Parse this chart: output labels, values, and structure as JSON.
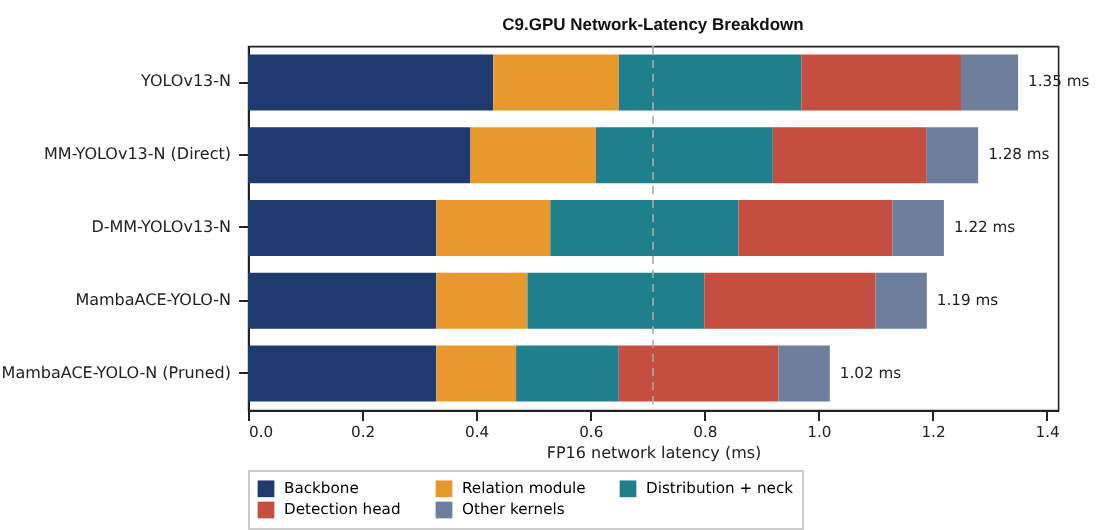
{
  "chart_data": {
    "type": "bar",
    "orientation": "horizontal",
    "stacked": true,
    "title": "C9.GPU Network-Latency Breakdown",
    "xlabel": "FP16 network latency (ms)",
    "categories": [
      "YOLOv13-N",
      "MM-YOLOv13-N (Direct)",
      "D-MM-YOLOv13-N",
      "MambaACE-YOLO-N",
      "MambaACE-YOLO-N (Pruned)"
    ],
    "series": [
      {
        "name": "Backbone",
        "color": "#1f3a6e",
        "values": [
          0.43,
          0.39,
          0.33,
          0.33,
          0.33
        ]
      },
      {
        "name": "Relation module",
        "color": "#e8992e",
        "values": [
          0.22,
          0.22,
          0.2,
          0.16,
          0.14
        ]
      },
      {
        "name": "Distribution + neck",
        "color": "#1f7f8a",
        "values": [
          0.32,
          0.31,
          0.33,
          0.31,
          0.18
        ]
      },
      {
        "name": "Detection head",
        "color": "#c44e3f",
        "values": [
          0.28,
          0.27,
          0.27,
          0.3,
          0.28
        ]
      },
      {
        "name": "Other kernels",
        "color": "#6e7f9e",
        "values": [
          0.1,
          0.09,
          0.09,
          0.09,
          0.09
        ]
      }
    ],
    "totals": [
      "1.35 ms",
      "1.28 ms",
      "1.22 ms",
      "1.19 ms",
      "1.02 ms"
    ],
    "xlim": [
      0,
      1.42
    ],
    "xticks": [
      {
        "value": 0,
        "label": "0.0"
      },
      0.2,
      0.4,
      0.6,
      0.8,
      {
        "value": 1,
        "label": "1.0"
      },
      1.2,
      1.4
    ],
    "ref_lines": [
      {
        "axis": "x",
        "value": 0.71,
        "color": "#aaaaaa",
        "line_style": "dashed"
      }
    ],
    "grid": false,
    "legend": "bottom"
  }
}
